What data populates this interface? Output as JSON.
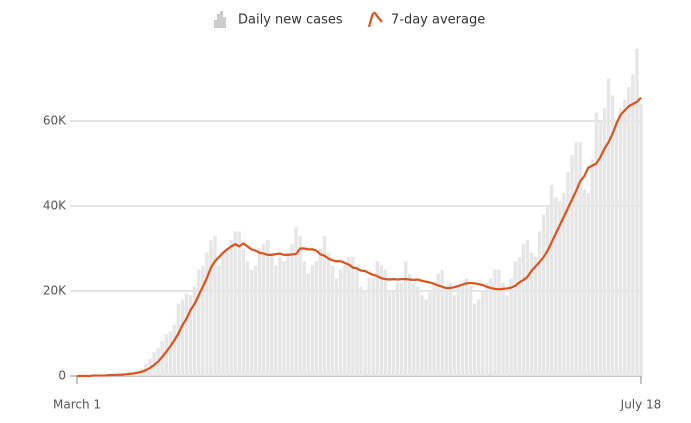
{
  "chart_data": {
    "type": "bar",
    "categories": [
      "March 1",
      null,
      null,
      null,
      null,
      null,
      null,
      null,
      null,
      null,
      null,
      null,
      null,
      null,
      null,
      null,
      null,
      null,
      null,
      null,
      null,
      null,
      null,
      null,
      null,
      null,
      null,
      null,
      null,
      null,
      null,
      null,
      null,
      null,
      null,
      null,
      null,
      null,
      null,
      null,
      null,
      null,
      null,
      null,
      null,
      null,
      null,
      null,
      null,
      null,
      null,
      null,
      null,
      null,
      null,
      null,
      null,
      null,
      null,
      null,
      null,
      null,
      null,
      null,
      null,
      null,
      null,
      null,
      null,
      null,
      null,
      null,
      null,
      null,
      null,
      null,
      null,
      null,
      null,
      null,
      null,
      null,
      null,
      null,
      null,
      null,
      null,
      null,
      null,
      null,
      null,
      null,
      null,
      null,
      null,
      null,
      null,
      null,
      null,
      null,
      null,
      null,
      null,
      null,
      null,
      null,
      null,
      null,
      null,
      null,
      null,
      null,
      null,
      null,
      null,
      null,
      null,
      null,
      null,
      null,
      null,
      null,
      null,
      null,
      null,
      null,
      null,
      null,
      null,
      null,
      null,
      null,
      null,
      null,
      null,
      null,
      null,
      null,
      null,
      "July 18"
    ],
    "series": [
      {
        "name": "Daily new cases",
        "type": "bar",
        "color": "#e6e6e6",
        "values": [
          10,
          20,
          30,
          40,
          60,
          80,
          120,
          150,
          190,
          300,
          400,
          500,
          700,
          800,
          900,
          1200,
          1800,
          2900,
          4000,
          5600,
          6500,
          8200,
          9800,
          10500,
          12000,
          17000,
          18000,
          19500,
          19000,
          21000,
          25000,
          26000,
          29000,
          32000,
          33000,
          26000,
          29000,
          30000,
          32000,
          34000,
          34000,
          30000,
          27000,
          25000,
          26000,
          30000,
          31000,
          32000,
          29000,
          26000,
          28000,
          27000,
          29000,
          31000,
          35000,
          33000,
          27000,
          24000,
          26000,
          27000,
          30000,
          33000,
          29000,
          26000,
          23000,
          25000,
          26000,
          28000,
          28000,
          26000,
          21000,
          20000,
          23000,
          23000,
          27000,
          26000,
          25000,
          20000,
          20000,
          22000,
          22000,
          27000,
          24000,
          22000,
          21000,
          19000,
          18000,
          20000,
          22000,
          24000,
          25000,
          21000,
          22000,
          19000,
          21000,
          22000,
          23000,
          21000,
          17000,
          18000,
          20000,
          22000,
          23000,
          25000,
          25000,
          22000,
          19000,
          23000,
          27000,
          28000,
          31000,
          32000,
          29000,
          28000,
          34000,
          38000,
          40000,
          45000,
          42000,
          41000,
          43000,
          48000,
          52000,
          55000,
          55000,
          44000,
          43000,
          51000,
          62000,
          60000,
          63000,
          70000,
          66000,
          60000,
          63000,
          65000,
          68000,
          71000,
          77000,
          64000
        ]
      },
      {
        "name": "7-day average",
        "type": "line",
        "color": "#d9541e",
        "values": [
          0,
          0,
          0,
          0,
          100,
          100,
          100,
          100,
          200,
          200,
          300,
          300,
          400,
          500,
          600,
          800,
          1000,
          1400,
          1900,
          2600,
          3400,
          4500,
          5700,
          7000,
          8400,
          10000,
          12000,
          13500,
          15500,
          17000,
          19000,
          21000,
          23000,
          25500,
          27000,
          28000,
          29000,
          29800,
          30500,
          31000,
          30500,
          31200,
          30500,
          29800,
          29500,
          29000,
          28800,
          28500,
          28500,
          28700,
          28800,
          28500,
          28500,
          28600,
          28700,
          30000,
          30000,
          29800,
          29800,
          29500,
          28600,
          28300,
          27600,
          27200,
          27000,
          27000,
          26600,
          26200,
          25500,
          25300,
          24800,
          24700,
          24200,
          23800,
          23500,
          23000,
          22800,
          22700,
          22800,
          22700,
          22800,
          22800,
          22700,
          22600,
          22700,
          22400,
          22200,
          22000,
          21700,
          21300,
          21000,
          20700,
          20700,
          20900,
          21200,
          21500,
          21800,
          21900,
          21800,
          21600,
          21400,
          21000,
          20700,
          20500,
          20400,
          20500,
          20600,
          20800,
          21200,
          22000,
          22600,
          23300,
          24700,
          25800,
          26800,
          28000,
          29500,
          31500,
          33500,
          35500,
          37500,
          39500,
          41500,
          43500,
          45800,
          47000,
          49000,
          49500,
          50000,
          51500,
          53500,
          55000,
          57000,
          59500,
          61500,
          62500,
          63500,
          64000,
          64500,
          65500
        ]
      }
    ],
    "ylim": [
      0,
      80000
    ],
    "yticks": [
      0,
      {
        "value": 20000,
        "label": "20K"
      },
      {
        "value": 40000,
        "label": "40K"
      },
      {
        "value": 60000,
        "label": "60K"
      }
    ],
    "grid": true
  }
}
